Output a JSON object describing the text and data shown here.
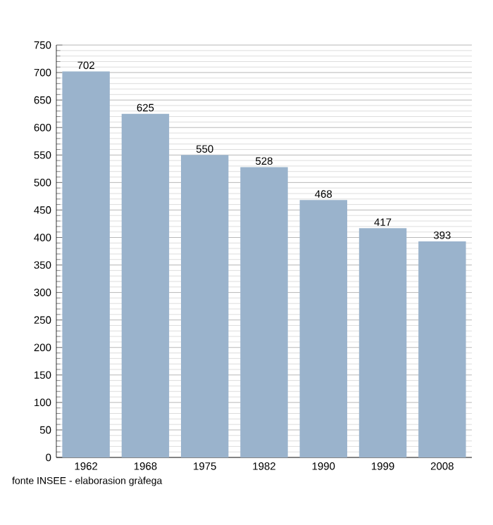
{
  "chart_data": {
    "type": "bar",
    "categories": [
      "1962",
      "1968",
      "1975",
      "1982",
      "1990",
      "1999",
      "2008"
    ],
    "values": [
      702,
      625,
      550,
      528,
      468,
      417,
      393
    ],
    "color": "#9ab3cc",
    "ylim": [
      0,
      750
    ],
    "yticks": [
      0,
      50,
      100,
      150,
      200,
      250,
      300,
      350,
      400,
      450,
      500,
      550,
      600,
      650,
      700,
      750
    ],
    "grid": "y",
    "data_labels": true,
    "annotations": [
      "fonte INSEE - elaborasion gràfega"
    ]
  }
}
